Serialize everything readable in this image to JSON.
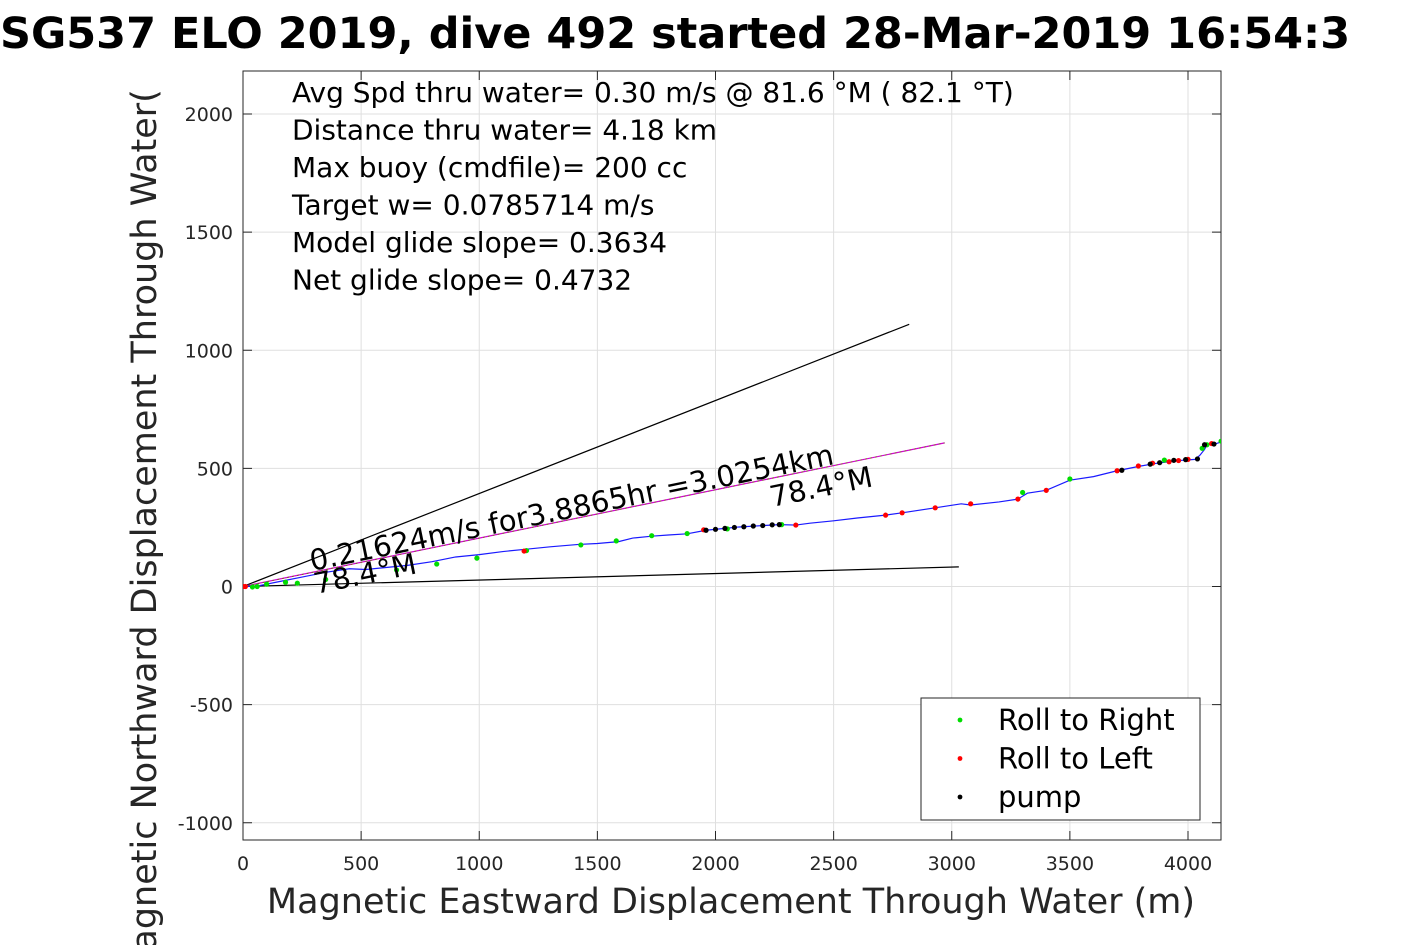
{
  "chart_data": {
    "type": "scatter",
    "title": "SG537 ELO 2019, dive 492 started 28-Mar-2019 16:54:3",
    "xlabel": "Magnetic Eastward Displacement Through Water (m)",
    "ylabel": "Magnetic Northward Displacement Through Water(",
    "xlim": [
      0,
      4150
    ],
    "ylim": [
      -1070,
      2170
    ],
    "x_ticks": [
      0,
      500,
      1000,
      1500,
      2000,
      2500,
      3000,
      3500,
      4000
    ],
    "y_ticks": [
      -1000,
      -500,
      0,
      500,
      1000,
      1500,
      2000
    ],
    "grid": true,
    "legend_position": "bottom-right",
    "annotations": [
      "Avg Spd thru water=  0.30 m/s @  81.6 °M ( 82.1 °T)",
      "Distance thru water=  4.18 km",
      "Max buoy (cmdfile)= 200 cc",
      "Target w= 0.0785714 m/s",
      "Model glide slope= 0.3634",
      "Net glide slope= 0.4732"
    ],
    "current_label": "0.21624m/s for3.8865hr =3.0254km",
    "heading_label_center": "78.4°M",
    "heading_label_end": "78.4°M",
    "reference_lines": [
      {
        "x": [
          0,
          2820
        ],
        "y": [
          0,
          1110
        ],
        "color": "#000000"
      },
      {
        "x": [
          0,
          3030
        ],
        "y": [
          0,
          83
        ],
        "color": "#000000"
      },
      {
        "x": [
          0,
          2970
        ],
        "y": [
          0,
          608
        ],
        "color": "#d400d4"
      }
    ],
    "track": {
      "color": "#1a1aff",
      "x": [
        0,
        60,
        150,
        250,
        350,
        450,
        520,
        600,
        700,
        800,
        900,
        1000,
        1100,
        1200,
        1300,
        1420,
        1500,
        1590,
        1650,
        1730,
        1800,
        1880,
        1960,
        2100,
        2270,
        2340,
        2400,
        2500,
        2600,
        2720,
        2790,
        2930,
        3040,
        3080,
        3200,
        3280,
        3320,
        3400,
        3500,
        3600,
        3700,
        3800,
        3870,
        3960,
        4030,
        4050,
        4070,
        4080,
        4120,
        4150
      ],
      "y": [
        0,
        2,
        20,
        40,
        60,
        75,
        72,
        80,
        90,
        105,
        125,
        135,
        148,
        158,
        168,
        178,
        182,
        190,
        205,
        213,
        218,
        223,
        238,
        252,
        262,
        260,
        268,
        278,
        290,
        302,
        312,
        333,
        350,
        345,
        358,
        370,
        395,
        407,
        450,
        465,
        490,
        510,
        522,
        533,
        538,
        555,
        580,
        600,
        605,
        615
      ]
    },
    "series": [
      {
        "name": "Roll to Right",
        "color": "#00dd00",
        "x": [
          40,
          60,
          100,
          180,
          230,
          350,
          650,
          820,
          990,
          1200,
          1430,
          1580,
          1730,
          1880,
          2050,
          2280,
          3300,
          3500,
          3900,
          4060,
          4080,
          4140
        ],
        "y": [
          -2,
          0,
          10,
          18,
          14,
          30,
          70,
          95,
          120,
          152,
          176,
          193,
          215,
          224,
          244,
          262,
          398,
          455,
          535,
          585,
          600,
          615
        ]
      },
      {
        "name": "Roll to Left",
        "color": "#ff0000",
        "x": [
          0,
          10,
          1190,
          1950,
          2340,
          2720,
          2790,
          2930,
          3080,
          3280,
          3400,
          3700,
          3790,
          3850,
          3920,
          3960,
          4000,
          4100
        ],
        "y": [
          0,
          0,
          150,
          240,
          260,
          302,
          312,
          333,
          350,
          370,
          407,
          490,
          510,
          522,
          528,
          533,
          538,
          605
        ]
      },
      {
        "name": "pump",
        "color": "#000000",
        "x": [
          1960,
          2000,
          2040,
          2080,
          2120,
          2160,
          2200,
          2240,
          2270,
          3720,
          3840,
          3880,
          3940,
          3990,
          4040,
          4070,
          4110
        ],
        "y": [
          238,
          242,
          246,
          250,
          253,
          256,
          258,
          261,
          262,
          492,
          518,
          524,
          534,
          537,
          540,
          600,
          603
        ]
      }
    ]
  }
}
